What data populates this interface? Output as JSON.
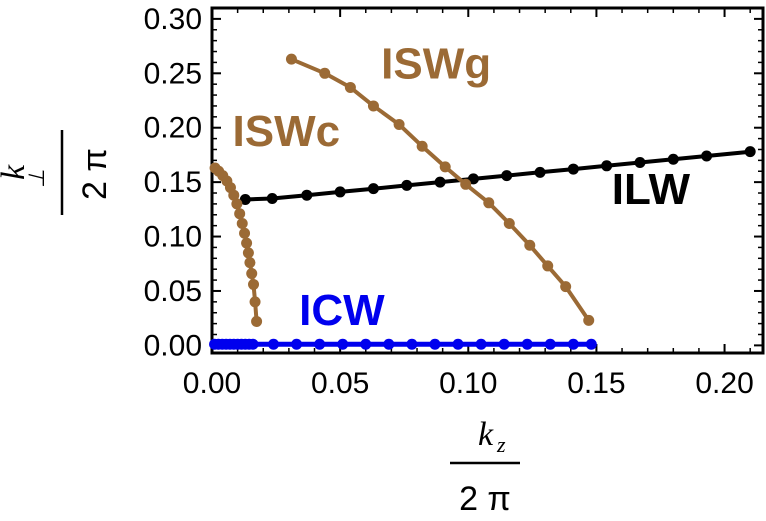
{
  "chart_data": {
    "type": "line",
    "xlim": [
      0.0,
      0.215
    ],
    "ylim": [
      -0.007,
      0.31
    ],
    "x_ticks": [
      "0.00",
      "0.05",
      "0.10",
      "0.15",
      "0.20"
    ],
    "y_ticks": [
      "0.00",
      "0.05",
      "0.10",
      "0.15",
      "0.20",
      "0.25",
      "0.30"
    ],
    "xlabel": {
      "symbol": "k",
      "subscript": "z",
      "denominator": "2 π"
    },
    "ylabel": {
      "symbol": "k",
      "subscript": "⊥",
      "denominator": "2 π"
    },
    "grid": false,
    "series": [
      {
        "name": "ILW",
        "color": "#000000",
        "x": [
          0.013,
          0.0235,
          0.037,
          0.05,
          0.063,
          0.076,
          0.089,
          0.102,
          0.115,
          0.128,
          0.141,
          0.154,
          0.167,
          0.18,
          0.193,
          0.21
        ],
        "y": [
          0.134,
          0.135,
          0.138,
          0.141,
          0.144,
          0.147,
          0.15,
          0.153,
          0.156,
          0.159,
          0.162,
          0.165,
          0.168,
          0.171,
          0.174,
          0.178
        ]
      },
      {
        "name": "ISWg",
        "color": "#9b6a35",
        "x": [
          0.031,
          0.044,
          0.054,
          0.063,
          0.073,
          0.082,
          0.091,
          0.099,
          0.108,
          0.116,
          0.124,
          0.131,
          0.138,
          0.147
        ],
        "y": [
          0.263,
          0.25,
          0.237,
          0.22,
          0.203,
          0.183,
          0.164,
          0.148,
          0.131,
          0.112,
          0.092,
          0.073,
          0.054,
          0.023
        ]
      },
      {
        "name": "ISWc",
        "color": "#9b6a35",
        "x": [
          0.0012,
          0.0026,
          0.0042,
          0.0058,
          0.0072,
          0.0085,
          0.0097,
          0.0108,
          0.0118,
          0.0127,
          0.0135,
          0.0142,
          0.0148,
          0.0155,
          0.0162,
          0.0168,
          0.0174
        ],
        "y": [
          0.163,
          0.16,
          0.156,
          0.151,
          0.145,
          0.138,
          0.13,
          0.121,
          0.112,
          0.103,
          0.094,
          0.085,
          0.076,
          0.066,
          0.056,
          0.04,
          0.022
        ]
      },
      {
        "name": "ICW",
        "color": "#0000ee",
        "x": [
          0.001,
          0.0025,
          0.004,
          0.0055,
          0.007,
          0.0085,
          0.01,
          0.0115,
          0.013,
          0.0145,
          0.016,
          0.024,
          0.033,
          0.042,
          0.051,
          0.06,
          0.069,
          0.078,
          0.087,
          0.096,
          0.105,
          0.114,
          0.123,
          0.132,
          0.141,
          0.148
        ],
        "y": [
          0.001,
          0.001,
          0.001,
          0.001,
          0.001,
          0.001,
          0.001,
          0.001,
          0.001,
          0.001,
          0.001,
          0.001,
          0.001,
          0.001,
          0.001,
          0.001,
          0.001,
          0.001,
          0.001,
          0.001,
          0.001,
          0.001,
          0.001,
          0.001,
          0.001,
          0.001
        ]
      }
    ],
    "annotations": [
      {
        "text": "ISWg",
        "x": 0.066,
        "y": 0.245,
        "color": "#9b6a35"
      },
      {
        "text": "ISWc",
        "x": 0.008,
        "y": 0.183,
        "color": "#9b6a35"
      },
      {
        "text": "ILW",
        "x": 0.156,
        "y": 0.13,
        "color": "#000000"
      },
      {
        "text": "ICW",
        "x": 0.034,
        "y": 0.0185,
        "color": "#0000ee"
      }
    ]
  }
}
